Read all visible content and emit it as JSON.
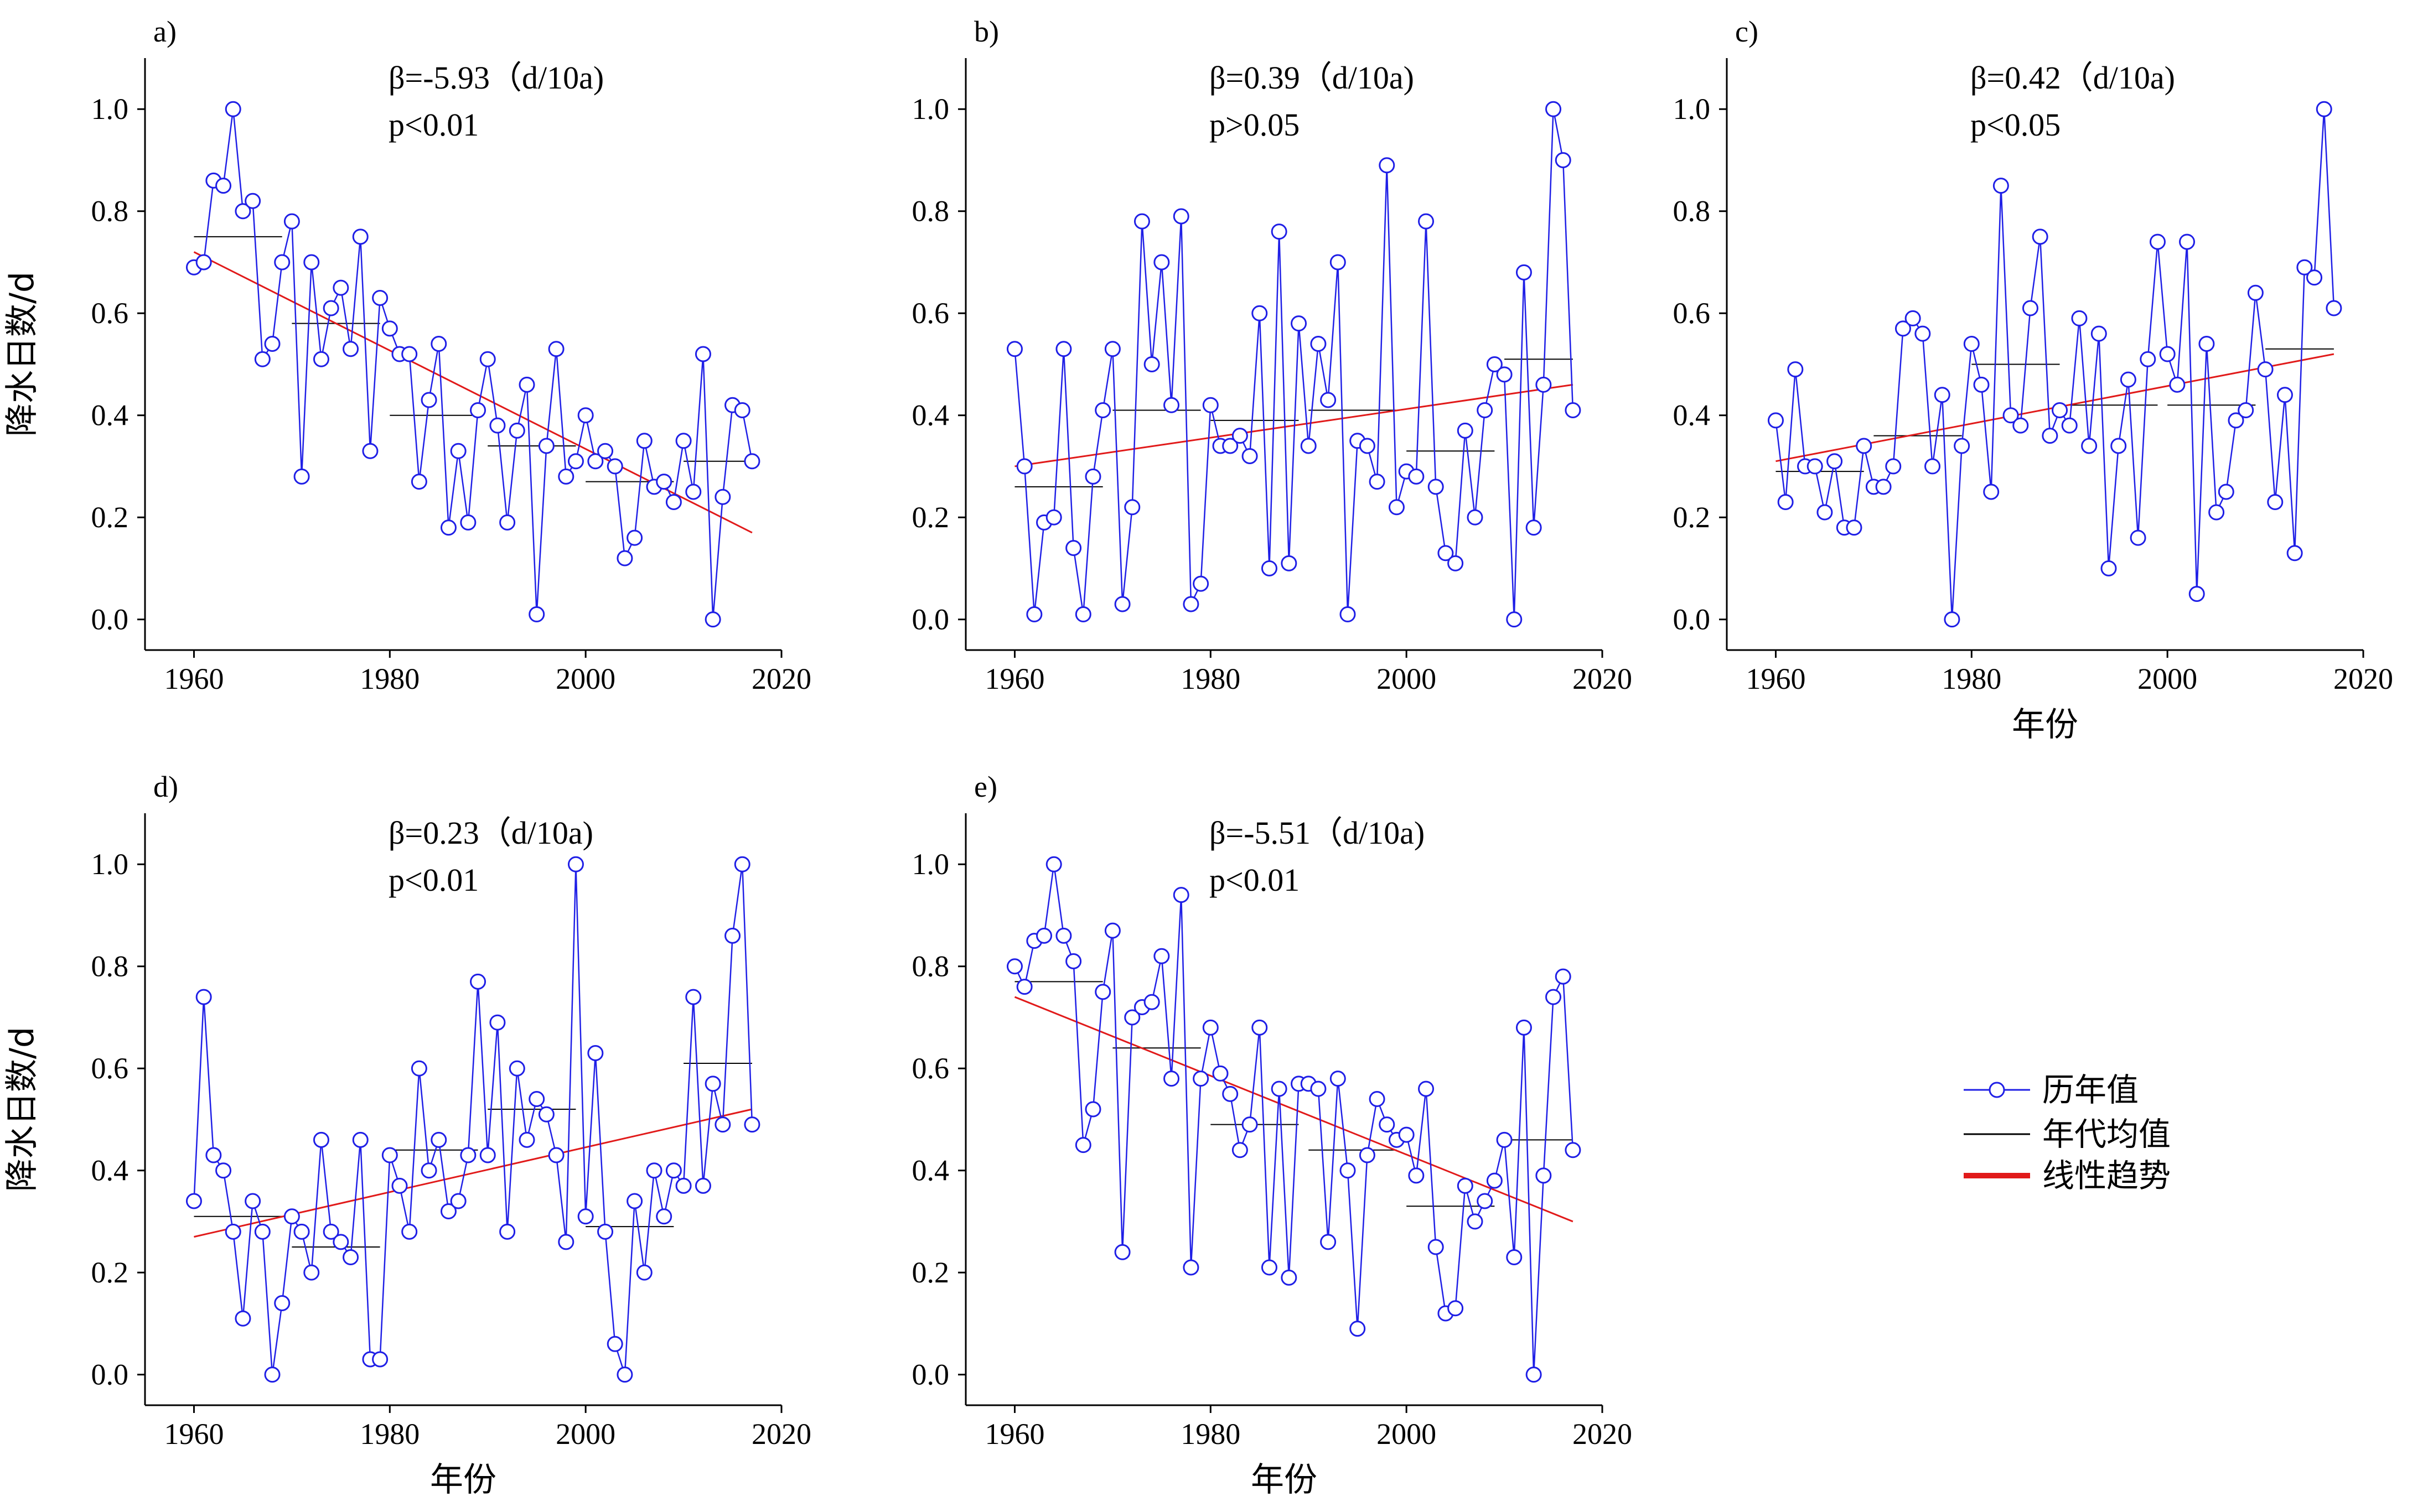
{
  "figure": {
    "legend": {
      "series_label": "历年值",
      "decade_label": "年代均值",
      "trend_label": "线性趋势"
    },
    "colors": {
      "series": "#1f1fe6",
      "decade": "#000000",
      "trend": "#e11a1a"
    }
  },
  "chart_data": [
    {
      "id": "a",
      "panel_label": "a)",
      "type": "line",
      "beta_text": "β=-5.93（d/10a)",
      "p_text": "p<0.01",
      "ylabel": "降水日数/d",
      "xlabel": "",
      "xlim": [
        1955,
        2020
      ],
      "ylim": [
        -0.06,
        1.1
      ],
      "xticks": [
        1960,
        1980,
        2000,
        2020
      ],
      "yticks": [
        0.0,
        0.2,
        0.4,
        0.6,
        0.8,
        1.0
      ],
      "x_start": 1960,
      "values": [
        0.69,
        0.7,
        0.86,
        0.85,
        1.0,
        0.8,
        0.82,
        0.51,
        0.54,
        0.7,
        0.78,
        0.28,
        0.7,
        0.51,
        0.61,
        0.65,
        0.53,
        0.75,
        0.33,
        0.63,
        0.57,
        0.52,
        0.52,
        0.27,
        0.43,
        0.54,
        0.18,
        0.33,
        0.19,
        0.41,
        0.51,
        0.38,
        0.19,
        0.37,
        0.46,
        0.01,
        0.34,
        0.53,
        0.28,
        0.31,
        0.4,
        0.31,
        0.33,
        0.3,
        0.12,
        0.16,
        0.35,
        0.26,
        0.27,
        0.23,
        0.35,
        0.25,
        0.52,
        0.0,
        0.24,
        0.42,
        0.41,
        0.31
      ],
      "trend": {
        "x": [
          1960,
          2017
        ],
        "y": [
          0.72,
          0.17
        ]
      },
      "decades": [
        {
          "x": [
            1960,
            1969
          ],
          "y": 0.75
        },
        {
          "x": [
            1970,
            1979
          ],
          "y": 0.58
        },
        {
          "x": [
            1980,
            1989
          ],
          "y": 0.4
        },
        {
          "x": [
            1990,
            1999
          ],
          "y": 0.34
        },
        {
          "x": [
            2000,
            2009
          ],
          "y": 0.27
        },
        {
          "x": [
            2010,
            2017
          ],
          "y": 0.31
        }
      ]
    },
    {
      "id": "b",
      "panel_label": "b)",
      "type": "line",
      "beta_text": "β=0.39（d/10a)",
      "p_text": "p>0.05",
      "ylabel": "",
      "xlabel": "",
      "xlim": [
        1955,
        2020
      ],
      "ylim": [
        -0.06,
        1.1
      ],
      "xticks": [
        1960,
        1980,
        2000,
        2020
      ],
      "yticks": [
        0.0,
        0.2,
        0.4,
        0.6,
        0.8,
        1.0
      ],
      "x_start": 1960,
      "values": [
        0.53,
        0.3,
        0.01,
        0.19,
        0.2,
        0.53,
        0.14,
        0.01,
        0.28,
        0.41,
        0.53,
        0.03,
        0.22,
        0.78,
        0.5,
        0.7,
        0.42,
        0.79,
        0.03,
        0.07,
        0.42,
        0.34,
        0.34,
        0.36,
        0.32,
        0.6,
        0.1,
        0.76,
        0.11,
        0.58,
        0.34,
        0.54,
        0.43,
        0.7,
        0.01,
        0.35,
        0.34,
        0.27,
        0.89,
        0.22,
        0.29,
        0.28,
        0.78,
        0.26,
        0.13,
        0.11,
        0.37,
        0.2,
        0.41,
        0.5,
        0.48,
        0.0,
        0.68,
        0.18,
        0.46,
        1.0,
        0.9,
        0.41
      ],
      "trend": {
        "x": [
          1960,
          2017
        ],
        "y": [
          0.3,
          0.46
        ]
      },
      "decades": [
        {
          "x": [
            1960,
            1969
          ],
          "y": 0.26
        },
        {
          "x": [
            1970,
            1979
          ],
          "y": 0.41
        },
        {
          "x": [
            1980,
            1989
          ],
          "y": 0.39
        },
        {
          "x": [
            1990,
            1999
          ],
          "y": 0.41
        },
        {
          "x": [
            2000,
            2009
          ],
          "y": 0.33
        },
        {
          "x": [
            2010,
            2017
          ],
          "y": 0.51
        }
      ]
    },
    {
      "id": "c",
      "panel_label": "c)",
      "type": "line",
      "beta_text": "β=0.42（d/10a)",
      "p_text": "p<0.05",
      "ylabel": "",
      "xlabel": "年份",
      "xlim": [
        1955,
        2020
      ],
      "ylim": [
        -0.06,
        1.1
      ],
      "xticks": [
        1960,
        1980,
        2000,
        2020
      ],
      "yticks": [
        0.0,
        0.2,
        0.4,
        0.6,
        0.8,
        1.0
      ],
      "x_start": 1960,
      "values": [
        0.39,
        0.23,
        0.49,
        0.3,
        0.3,
        0.21,
        0.31,
        0.18,
        0.18,
        0.34,
        0.26,
        0.26,
        0.3,
        0.57,
        0.59,
        0.56,
        0.3,
        0.44,
        0.0,
        0.34,
        0.54,
        0.46,
        0.25,
        0.85,
        0.4,
        0.38,
        0.61,
        0.75,
        0.36,
        0.41,
        0.38,
        0.59,
        0.34,
        0.56,
        0.1,
        0.34,
        0.47,
        0.16,
        0.51,
        0.74,
        0.52,
        0.46,
        0.74,
        0.05,
        0.54,
        0.21,
        0.25,
        0.39,
        0.41,
        0.64,
        0.49,
        0.23,
        0.44,
        0.13,
        0.69,
        0.67,
        1.0,
        0.61
      ],
      "trend": {
        "x": [
          1960,
          2017
        ],
        "y": [
          0.31,
          0.52
        ]
      },
      "decades": [
        {
          "x": [
            1960,
            1969
          ],
          "y": 0.29
        },
        {
          "x": [
            1970,
            1979
          ],
          "y": 0.36
        },
        {
          "x": [
            1980,
            1989
          ],
          "y": 0.5
        },
        {
          "x": [
            1990,
            1999
          ],
          "y": 0.42
        },
        {
          "x": [
            2000,
            2009
          ],
          "y": 0.42
        },
        {
          "x": [
            2010,
            2017
          ],
          "y": 0.53
        }
      ]
    },
    {
      "id": "d",
      "panel_label": "d)",
      "type": "line",
      "beta_text": "β=0.23（d/10a)",
      "p_text": "p<0.01",
      "ylabel": "降水日数/d",
      "xlabel": "年份",
      "xlim": [
        1955,
        2020
      ],
      "ylim": [
        -0.06,
        1.1
      ],
      "xticks": [
        1960,
        1980,
        2000,
        2020
      ],
      "yticks": [
        0.0,
        0.2,
        0.4,
        0.6,
        0.8,
        1.0
      ],
      "x_start": 1960,
      "values": [
        0.34,
        0.74,
        0.43,
        0.4,
        0.28,
        0.11,
        0.34,
        0.28,
        0.0,
        0.14,
        0.31,
        0.28,
        0.2,
        0.46,
        0.28,
        0.26,
        0.23,
        0.46,
        0.03,
        0.03,
        0.43,
        0.37,
        0.28,
        0.6,
        0.4,
        0.46,
        0.32,
        0.34,
        0.43,
        0.77,
        0.43,
        0.69,
        0.28,
        0.6,
        0.46,
        0.54,
        0.51,
        0.43,
        0.26,
        1.0,
        0.31,
        0.63,
        0.28,
        0.06,
        0.0,
        0.34,
        0.2,
        0.4,
        0.31,
        0.4,
        0.37,
        0.74,
        0.37,
        0.57,
        0.49,
        0.86,
        1.0,
        0.49
      ],
      "trend": {
        "x": [
          1960,
          2017
        ],
        "y": [
          0.27,
          0.52
        ]
      },
      "decades": [
        {
          "x": [
            1960,
            1969
          ],
          "y": 0.31
        },
        {
          "x": [
            1970,
            1979
          ],
          "y": 0.25
        },
        {
          "x": [
            1980,
            1989
          ],
          "y": 0.44
        },
        {
          "x": [
            1990,
            1999
          ],
          "y": 0.52
        },
        {
          "x": [
            2000,
            2009
          ],
          "y": 0.29
        },
        {
          "x": [
            2010,
            2017
          ],
          "y": 0.61
        }
      ]
    },
    {
      "id": "e",
      "panel_label": "e)",
      "type": "line",
      "beta_text": "β=-5.51（d/10a)",
      "p_text": "p<0.01",
      "ylabel": "",
      "xlabel": "年份",
      "xlim": [
        1955,
        2020
      ],
      "ylim": [
        -0.06,
        1.1
      ],
      "xticks": [
        1960,
        1980,
        2000,
        2020
      ],
      "yticks": [
        0.0,
        0.2,
        0.4,
        0.6,
        0.8,
        1.0
      ],
      "x_start": 1960,
      "values": [
        0.8,
        0.76,
        0.85,
        0.86,
        1.0,
        0.86,
        0.81,
        0.45,
        0.52,
        0.75,
        0.87,
        0.24,
        0.7,
        0.72,
        0.73,
        0.82,
        0.58,
        0.94,
        0.21,
        0.58,
        0.68,
        0.59,
        0.55,
        0.44,
        0.49,
        0.68,
        0.21,
        0.56,
        0.19,
        0.57,
        0.57,
        0.56,
        0.26,
        0.58,
        0.4,
        0.09,
        0.43,
        0.54,
        0.49,
        0.46,
        0.47,
        0.39,
        0.56,
        0.25,
        0.12,
        0.13,
        0.37,
        0.3,
        0.34,
        0.38,
        0.46,
        0.23,
        0.68,
        0.0,
        0.39,
        0.74,
        0.78,
        0.44
      ],
      "trend": {
        "x": [
          1960,
          2017
        ],
        "y": [
          0.74,
          0.3
        ]
      },
      "decades": [
        {
          "x": [
            1960,
            1969
          ],
          "y": 0.77
        },
        {
          "x": [
            1970,
            1979
          ],
          "y": 0.64
        },
        {
          "x": [
            1980,
            1989
          ],
          "y": 0.49
        },
        {
          "x": [
            1990,
            1999
          ],
          "y": 0.44
        },
        {
          "x": [
            2000,
            2009
          ],
          "y": 0.33
        },
        {
          "x": [
            2010,
            2017
          ],
          "y": 0.46
        }
      ]
    }
  ]
}
